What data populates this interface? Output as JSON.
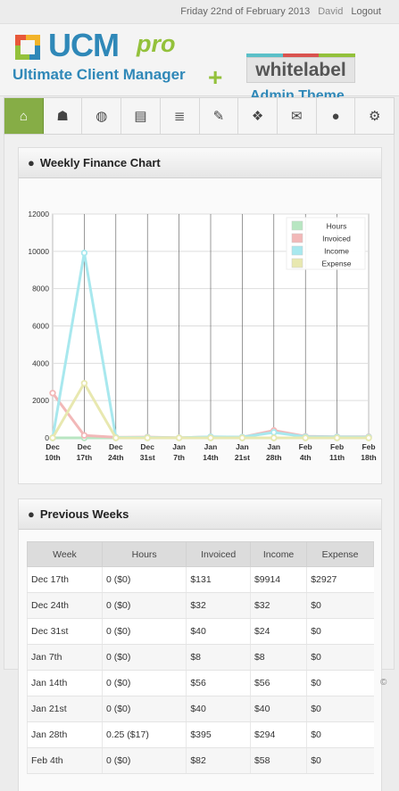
{
  "topbar": {
    "date": "Friday 22nd of February 2013",
    "user": "David",
    "logout": "Logout"
  },
  "logo": {
    "brand": "UCM",
    "brand_suffix": "pro",
    "tagline": "Ultimate Client Manager",
    "plus": "+",
    "theme_name": "whitelabel",
    "theme_sub": "Admin Theme"
  },
  "nav": [
    {
      "icon": "home-icon",
      "glyph": "⌂"
    },
    {
      "icon": "customers-icon",
      "glyph": "☗"
    },
    {
      "icon": "websites-icon",
      "glyph": "◍"
    },
    {
      "icon": "documents-icon",
      "glyph": "▤"
    },
    {
      "icon": "finance-icon",
      "glyph": "≣"
    },
    {
      "icon": "support-icon",
      "glyph": "✎"
    },
    {
      "icon": "dropbox-icon",
      "glyph": "❖"
    },
    {
      "icon": "email-icon",
      "glyph": "✉"
    },
    {
      "icon": "piggybank-icon",
      "glyph": "●"
    },
    {
      "icon": "settings-icon",
      "glyph": "⚙"
    }
  ],
  "chart_panel": {
    "title": "Weekly Finance Chart"
  },
  "chart_data": {
    "type": "line",
    "categories": [
      [
        "Dec",
        "10th"
      ],
      [
        "Dec",
        "17th"
      ],
      [
        "Dec",
        "24th"
      ],
      [
        "Dec",
        "31st"
      ],
      [
        "Jan",
        "7th"
      ],
      [
        "Jan",
        "14th"
      ],
      [
        "Jan",
        "21st"
      ],
      [
        "Jan",
        "28th"
      ],
      [
        "Feb",
        "4th"
      ],
      [
        "Feb",
        "11th"
      ],
      [
        "Feb",
        "18th"
      ]
    ],
    "ylim": [
      0,
      12000
    ],
    "yticks": [
      0,
      2000,
      4000,
      6000,
      8000,
      10000,
      12000
    ],
    "grid": true,
    "legend_position": "top-right",
    "series": [
      {
        "name": "Hours",
        "color": "#b8e6c2",
        "values": [
          0,
          0,
          0,
          0,
          0,
          0,
          0,
          0.25,
          0,
          0,
          0
        ]
      },
      {
        "name": "Invoiced",
        "color": "#f2b8b8",
        "values": [
          2400,
          131,
          32,
          40,
          8,
          56,
          40,
          395,
          82,
          60,
          60
        ]
      },
      {
        "name": "Income",
        "color": "#a8e8ee",
        "values": [
          0,
          9914,
          32,
          24,
          8,
          56,
          40,
          294,
          58,
          50,
          40
        ]
      },
      {
        "name": "Expense",
        "color": "#e8e8b0",
        "values": [
          0,
          2927,
          0,
          0,
          0,
          0,
          0,
          0,
          0,
          0,
          0
        ]
      }
    ]
  },
  "weeks_panel": {
    "title": "Previous Weeks"
  },
  "weeks_table": {
    "columns": [
      "Week",
      "Hours",
      "Invoiced",
      "Income",
      "Expense"
    ],
    "rows": [
      [
        "Dec 17th",
        "0 ($0)",
        "$131",
        "$9914",
        "$2927"
      ],
      [
        "Dec 24th",
        "0 ($0)",
        "$32",
        "$32",
        "$0"
      ],
      [
        "Dec 31st",
        "0 ($0)",
        "$40",
        "$24",
        "$0"
      ],
      [
        "Jan 7th",
        "0 ($0)",
        "$8",
        "$8",
        "$0"
      ],
      [
        "Jan 14th",
        "0 ($0)",
        "$56",
        "$56",
        "$0"
      ],
      [
        "Jan 21st",
        "0 ($0)",
        "$40",
        "$40",
        "$0"
      ],
      [
        "Jan 28th",
        "0.25 ($17)",
        "$395",
        "$294",
        "$0"
      ],
      [
        "Feb 4th",
        "0 ($0)",
        "$82",
        "$58",
        "$0"
      ]
    ]
  },
  "footer": {
    "copyright": "©"
  },
  "colors": {
    "accent_green": "#86ad46",
    "brand_blue": "#2f88b8",
    "pro_green": "#93c13b"
  }
}
